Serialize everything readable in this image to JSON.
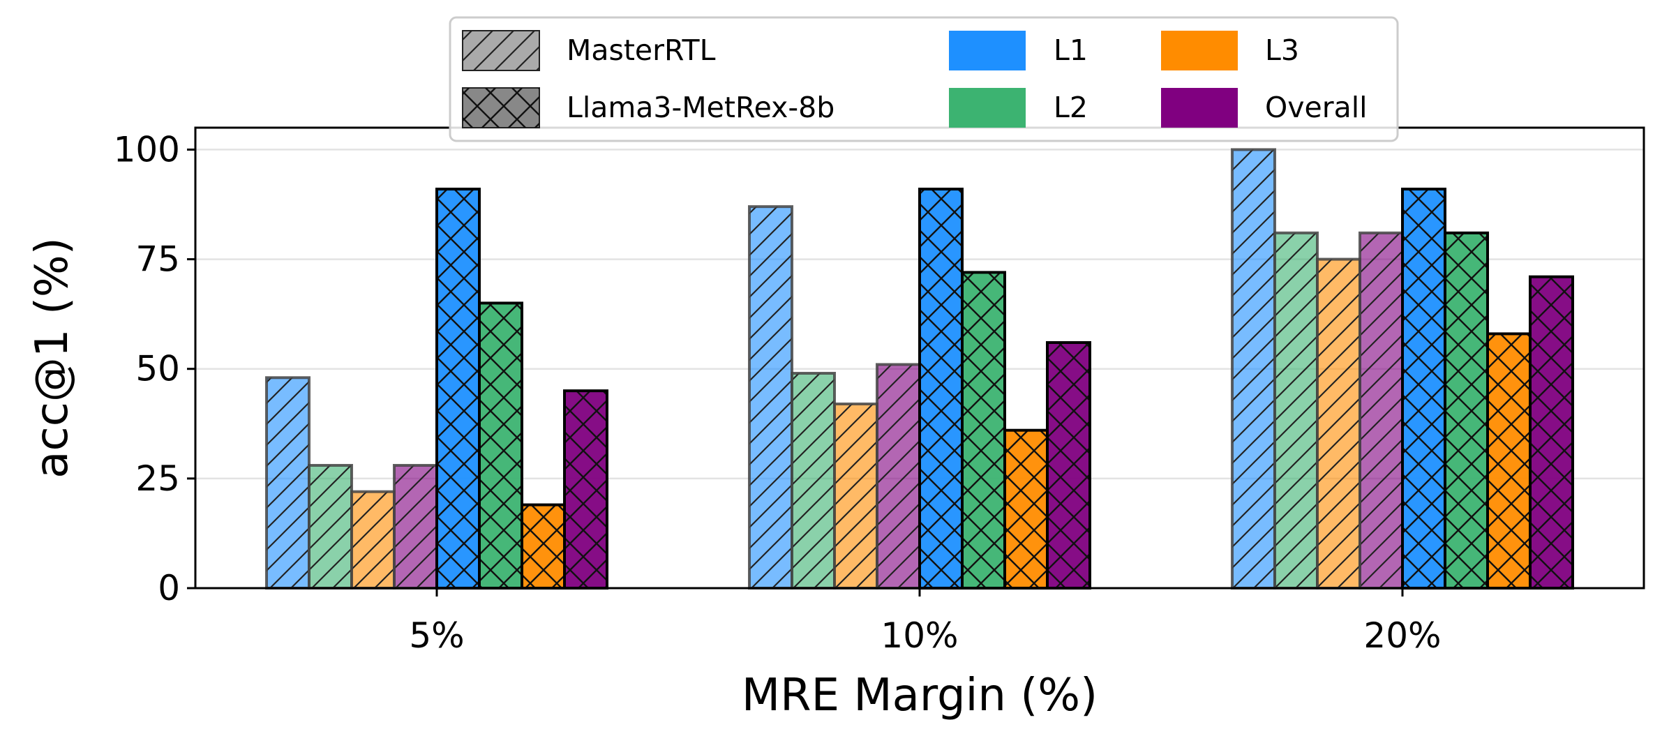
{
  "chart_data": {
    "type": "bar",
    "xlabel": "MRE Margin (%)",
    "ylabel": "acc@1 (%)",
    "categories": [
      "5%",
      "10%",
      "20%"
    ],
    "ylim": [
      0,
      105
    ],
    "yticks": [
      "0",
      "25",
      "50",
      "75",
      "100"
    ],
    "grid": "horizontal",
    "legend_position": "top-center",
    "series": [
      {
        "model": "MasterRTL",
        "level": "L1",
        "values": [
          48,
          87,
          100
        ]
      },
      {
        "model": "MasterRTL",
        "level": "L2",
        "values": [
          28,
          49,
          81
        ]
      },
      {
        "model": "MasterRTL",
        "level": "L3",
        "values": [
          22,
          42,
          75
        ]
      },
      {
        "model": "MasterRTL",
        "level": "Overall",
        "values": [
          28,
          51,
          81
        ]
      },
      {
        "model": "Llama3-MetRex-8b",
        "level": "L1",
        "values": [
          91,
          91,
          91
        ]
      },
      {
        "model": "Llama3-MetRex-8b",
        "level": "L2",
        "values": [
          65,
          72,
          81
        ]
      },
      {
        "model": "Llama3-MetRex-8b",
        "level": "L3",
        "values": [
          19,
          36,
          58
        ]
      },
      {
        "model": "Llama3-MetRex-8b",
        "level": "Overall",
        "values": [
          45,
          56,
          71
        ]
      }
    ],
    "legend": {
      "models": [
        {
          "label": "MasterRTL",
          "hatch": "diagonal"
        },
        {
          "label": "Llama3-MetRex-8b",
          "hatch": "crosshatch"
        }
      ],
      "levels": [
        {
          "label": "L1",
          "color": "#1e90ff"
        },
        {
          "label": "L2",
          "color": "#3cb371"
        },
        {
          "label": "L3",
          "color": "#ff8c00"
        },
        {
          "label": "Overall",
          "color": "#800080"
        }
      ]
    },
    "model_opacity": {
      "MasterRTL": 0.6,
      "Llama3-MetRex-8b": 0.95
    }
  }
}
